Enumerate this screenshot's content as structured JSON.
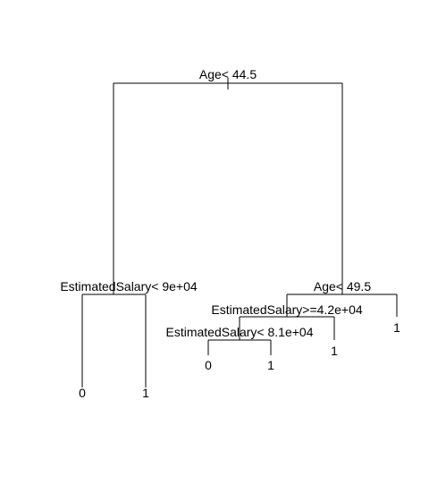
{
  "colors": {
    "background": "#ffffff",
    "ink": "#000000"
  },
  "tree": {
    "splits": {
      "root": "Age< 44.5",
      "left": "EstimatedSalary< 9e+04",
      "right": "Age< 49.5",
      "right_left": "EstimatedSalary>=4.2e+04",
      "right_left_left": "EstimatedSalary< 8.1e+04"
    },
    "leaves": {
      "left_left": "0",
      "left_right": "1",
      "rll_left": "0",
      "rll_right": "1",
      "right_left_right": "1",
      "right_right": "1"
    }
  }
}
